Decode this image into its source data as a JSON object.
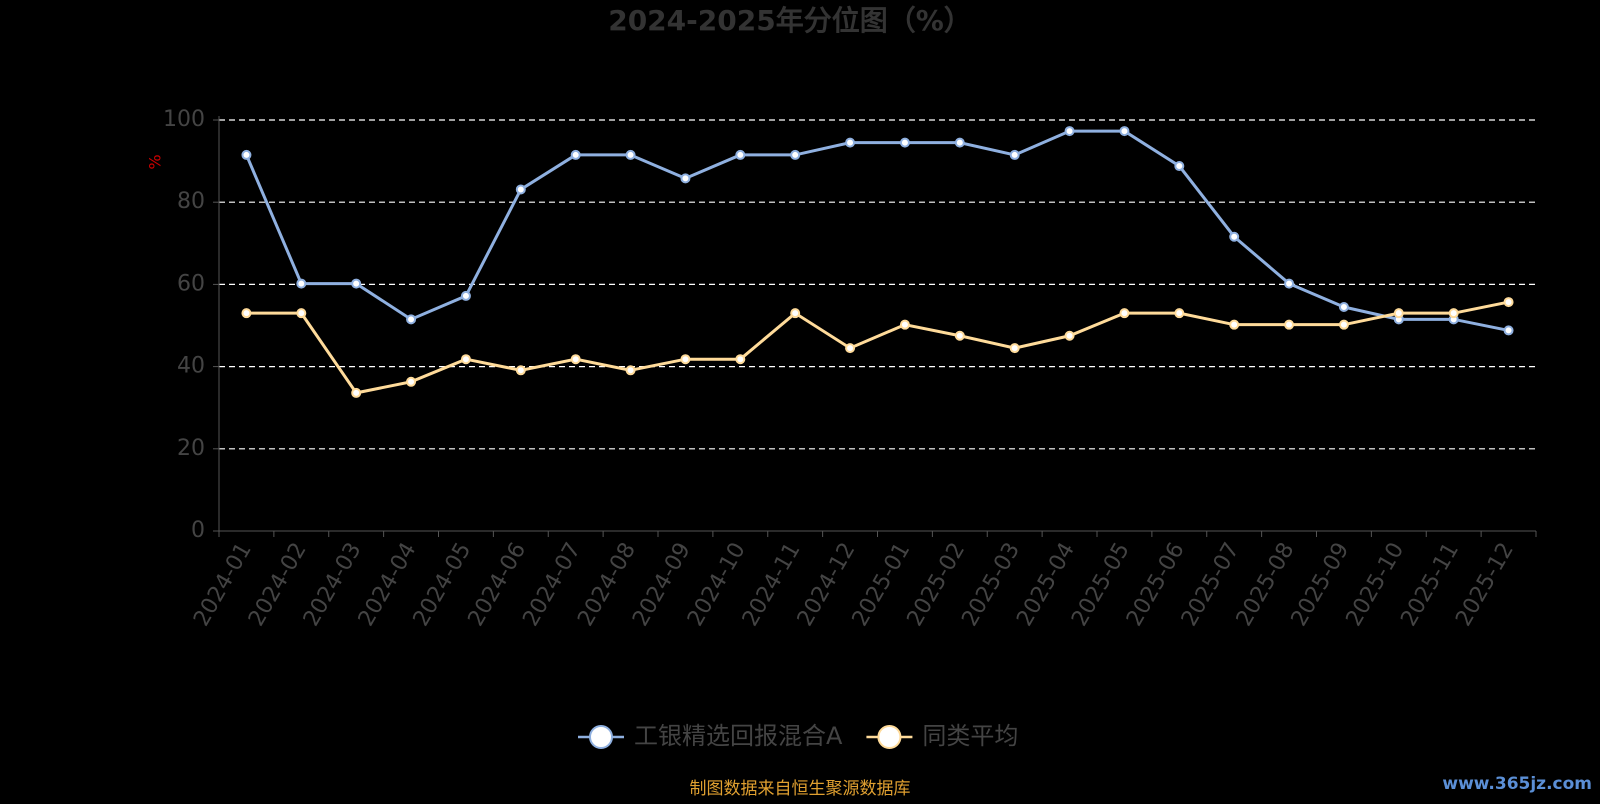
{
  "chart_data": {
    "type": "line",
    "title": "2024-2025年分位图（%）",
    "y_axis_label": "%",
    "categories": [
      "2024-01",
      "2024-02",
      "2024-03",
      "2024-04",
      "2024-05",
      "2024-06",
      "2024-07",
      "2024-08",
      "2024-09",
      "2024-10",
      "2024-11",
      "2024-12",
      "2025-01",
      "2025-02",
      "2025-03",
      "2025-04",
      "2025-05",
      "2025-06",
      "2025-07",
      "2025-08",
      "2025-09",
      "2025-10",
      "2025-11",
      "2025-12"
    ],
    "series": [
      {
        "name": "工银精选回报混合A",
        "color": "#8fb0e0",
        "values": [
          91.5,
          60.2,
          60.2,
          51.5,
          57.2,
          83.1,
          91.5,
          91.5,
          85.8,
          91.5,
          91.5,
          94.5,
          94.5,
          94.5,
          91.5,
          97.3,
          97.3,
          88.8,
          71.6,
          60.2,
          54.5,
          51.5,
          51.5,
          48.8
        ]
      },
      {
        "name": "同类平均",
        "color": "#ffdb9a",
        "values": [
          53,
          53,
          33.6,
          36.3,
          41.8,
          39.1,
          41.8,
          39.1,
          41.8,
          41.8,
          53,
          44.5,
          50.2,
          47.5,
          44.5,
          47.5,
          53,
          53,
          50.2,
          50.2,
          50.2,
          53,
          53,
          55.7
        ]
      }
    ],
    "ylim": [
      0,
      100
    ],
    "yticks": [
      0,
      20,
      40,
      60,
      80,
      100
    ],
    "grid": true,
    "legend": "bottom",
    "footer": "制图数据来自恒生聚源数据库",
    "watermark": "www.365jz.com"
  }
}
